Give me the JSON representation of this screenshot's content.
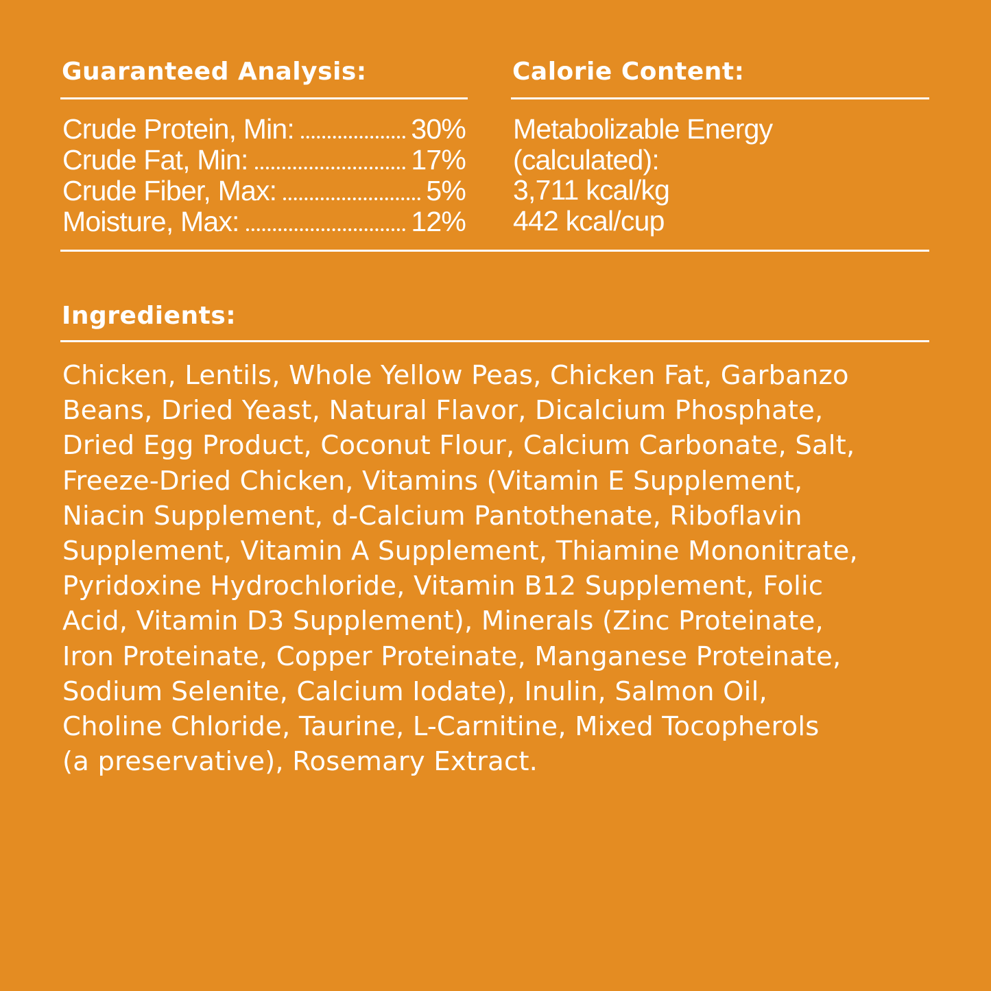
{
  "colors": {
    "background": "#E48C22",
    "text": "#FFFFFF"
  },
  "guaranteed_analysis": {
    "heading": "Guaranteed Analysis:",
    "rows": [
      {
        "label": "Crude Protein, Min:",
        "value": "30%"
      },
      {
        "label": "Crude Fat, Min:",
        "value": "17%"
      },
      {
        "label": "Crude Fiber, Max:",
        "value": "5%"
      },
      {
        "label": "Moisture, Max:",
        "value": "12%"
      }
    ]
  },
  "calorie_content": {
    "heading": "Calorie Content:",
    "lines": [
      "Metabolizable Energy",
      "(calculated):",
      "3,711 kcal/kg",
      "442 kcal/cup"
    ]
  },
  "ingredients": {
    "heading": "Ingredients:",
    "lines": [
      "Chicken, Lentils, Whole Yellow Peas, Chicken Fat, Garbanzo",
      "Beans, Dried Yeast, Natural Flavor, Dicalcium Phosphate,",
      "Dried Egg Product, Coconut Flour, Calcium Carbonate, Salt,",
      "Freeze-Dried Chicken, Vitamins (Vitamin E Supplement,",
      "Niacin Supplement, d-Calcium Pantothenate, Riboflavin",
      "Supplement, Vitamin A Supplement, Thiamine Mononitrate,",
      "Pyridoxine Hydrochloride, Vitamin B12 Supplement, Folic",
      "Acid, Vitamin D3 Supplement), Minerals (Zinc Proteinate,",
      "Iron Proteinate, Copper Proteinate, Manganese Proteinate,",
      "Sodium Selenite, Calcium Iodate), Inulin, Salmon Oil,",
      "Choline Chloride, Taurine, L-Carnitine, Mixed Tocopherols",
      "(a preservative), Rosemary Extract."
    ]
  }
}
